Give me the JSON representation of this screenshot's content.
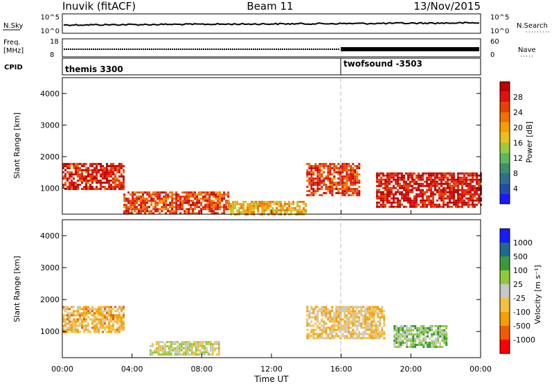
{
  "header": {
    "station": "Inuvik (fitACF)",
    "beam": "Beam 11",
    "date": "13/Nov/2015"
  },
  "nsky": {
    "label": "N.Sky",
    "tick_top": "10^5",
    "tick_bottom": "10^0",
    "right_label": "N.Search",
    "right_tick_top": "10^5",
    "right_tick_bottom": "10^0"
  },
  "freq": {
    "label_line1": "Freq.",
    "label_line2": "[MHz]",
    "tick_top": "18",
    "tick_bottom": "8",
    "right_label": "Nave",
    "right_tick_top": "60",
    "right_tick_bottom": "0"
  },
  "cpid": {
    "label": "CPID",
    "mode1": "themis 3300",
    "mode2": "twofsound -3503"
  },
  "colors": {
    "power": [
      "#1a1aff",
      "#1f4fa8",
      "#2e6e8e",
      "#3e8e6a",
      "#5cb85c",
      "#9ccc3c",
      "#e8c020",
      "#f5a000",
      "#f07000",
      "#e84000",
      "#e01010",
      "#c00000"
    ],
    "velocity": [
      "#ff0000",
      "#f05a00",
      "#f5a000",
      "#f5c040",
      "#c8c8c8",
      "#8ccc3c",
      "#3a9a3a",
      "#1f6a8e",
      "#1a1aff"
    ]
  },
  "chart_data": [
    {
      "type": "heatmap",
      "title": "Power",
      "xlabel": "",
      "ylabel": "Slant Range [km]",
      "xlim": [
        "00:00",
        "24:00"
      ],
      "ylim": [
        180,
        4500
      ],
      "yticks": [
        "1000",
        "2000",
        "3000",
        "4000"
      ],
      "colorbar_label": "Power [dB]",
      "colorbar_ticks": [
        "4",
        "8",
        "12",
        "16",
        "20",
        "24",
        "28"
      ],
      "clim": [
        0,
        30
      ],
      "regions": [
        {
          "t": [
            0.0,
            3.5
          ],
          "r": [
            1000,
            1800
          ],
          "value": 26
        },
        {
          "t": [
            3.5,
            9.5
          ],
          "r": [
            200,
            900
          ],
          "value": 24
        },
        {
          "t": [
            9.5,
            14.0
          ],
          "r": [
            200,
            600
          ],
          "value": 18
        },
        {
          "t": [
            14.0,
            17.0
          ],
          "r": [
            800,
            1800
          ],
          "value": 24
        },
        {
          "t": [
            18.0,
            24.0
          ],
          "r": [
            400,
            1500
          ],
          "value": 27
        }
      ]
    },
    {
      "type": "heatmap",
      "title": "Velocity",
      "xlabel": "Time UT",
      "ylabel": "Slant Range [km]",
      "xlim": [
        "00:00",
        "24:00"
      ],
      "ylim": [
        180,
        4500
      ],
      "xticks": [
        "00:00",
        "04:00",
        "08:00",
        "12:00",
        "16:00",
        "20:00",
        "00:00"
      ],
      "yticks": [
        "1000",
        "2000",
        "3000",
        "4000"
      ],
      "colorbar_label": "Velocity [m s⁻¹]",
      "colorbar_ticks": [
        "-1000",
        "-500",
        "-100",
        "-25",
        "25",
        "100",
        "500",
        "1000"
      ],
      "clim": [
        -1000,
        1000
      ],
      "regions": [
        {
          "t": [
            0.0,
            3.5
          ],
          "r": [
            1000,
            1800
          ],
          "value": -300
        },
        {
          "t": [
            5.0,
            9.0
          ],
          "r": [
            300,
            700
          ],
          "value": 0
        },
        {
          "t": [
            14.0,
            18.5
          ],
          "r": [
            800,
            1800
          ],
          "value": -200
        },
        {
          "t": [
            19.0,
            22.0
          ],
          "r": [
            500,
            1200
          ],
          "value": 200
        }
      ]
    }
  ]
}
